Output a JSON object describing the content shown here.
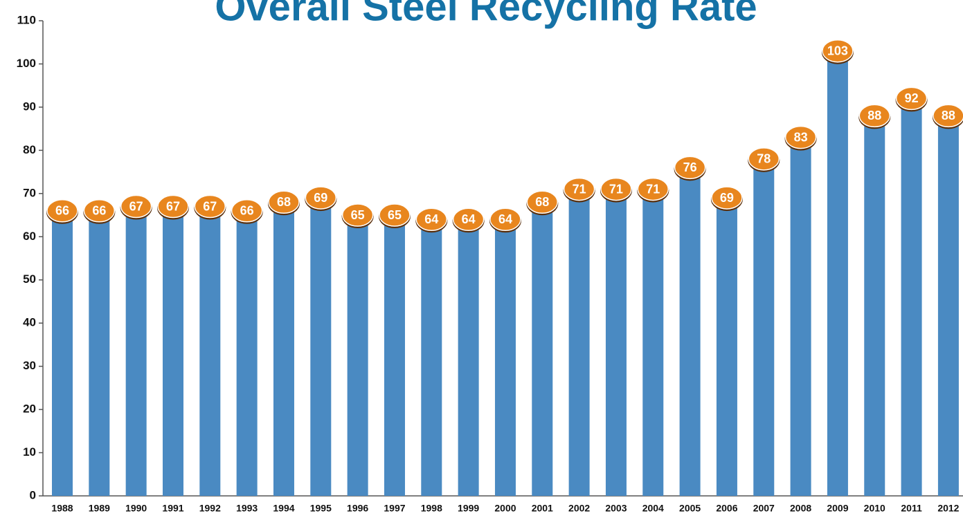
{
  "chart_data": {
    "type": "bar",
    "title": "Overall Steel Recycling Rate",
    "categories": [
      "1988",
      "1989",
      "1990",
      "1991",
      "1992",
      "1993",
      "1994",
      "1995",
      "1996",
      "1997",
      "1998",
      "1999",
      "2000",
      "2001",
      "2002",
      "2003",
      "2004",
      "2005",
      "2006",
      "2007",
      "2008",
      "2009",
      "2010",
      "2011",
      "2012"
    ],
    "values": [
      66,
      66,
      67,
      67,
      67,
      66,
      68,
      69,
      65,
      65,
      64,
      64,
      64,
      68,
      71,
      71,
      71,
      76,
      69,
      78,
      83,
      103,
      88,
      92,
      88
    ],
    "color": "#4a8ac2",
    "label_color": "#e8861e",
    "ylim": [
      0,
      110
    ],
    "yticks": [
      0,
      10,
      20,
      30,
      40,
      50,
      60,
      70,
      80,
      90,
      100,
      110
    ],
    "grid": false
  }
}
